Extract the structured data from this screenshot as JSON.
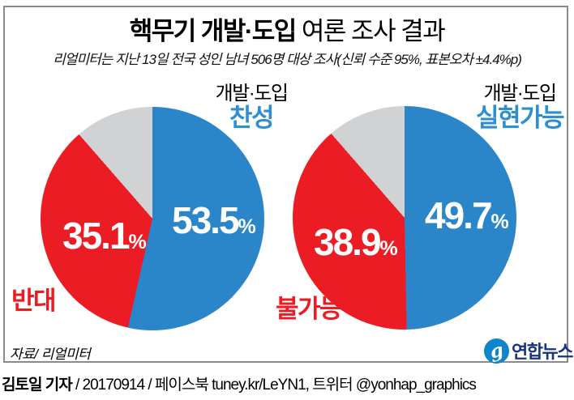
{
  "title": {
    "emphasis": "핵무기 개발·도입",
    "rest": " 여론 조사 결과"
  },
  "subtitle": "리얼미터는 지난 13일 전국 성인 남녀 506명 대상 조사(신뢰 수준 95%, 표본오차 ±4.4%p)",
  "percent_sign": "%",
  "source_note": "자료/ 리얼미터",
  "branding": {
    "logo_glyph": "g",
    "logo_text": "연합뉴스"
  },
  "footer": {
    "author": "김토일 기자",
    "meta": " / 20170914 / 페이스북 tuney.kr/LeYN1, 트위터 @yonhap_graphics"
  },
  "colors": {
    "slice_blue": "#2a86c8",
    "slice_red": "#ec1c24",
    "slice_gray": "#d0d2d3",
    "label_blue": "#2e8fd0",
    "label_red": "#ec1c24",
    "logo_blue": "#0e86c9",
    "logo_navy": "#17357c"
  },
  "chart_data": [
    {
      "type": "pie",
      "heading_small": "개발·도입",
      "heading_main": "찬성",
      "legend_position": "around-pie",
      "slices": [
        {
          "label": "찬성",
          "value": 53.5,
          "color": "#2a86c8"
        },
        {
          "label": "반대",
          "value": 35.1,
          "color": "#ec1c24"
        },
        {
          "label": "",
          "value": 11.4,
          "color": "#d0d2d3"
        }
      ]
    },
    {
      "type": "pie",
      "heading_small": "개발·도입",
      "heading_main": "실현가능",
      "legend_position": "around-pie",
      "slices": [
        {
          "label": "실현가능",
          "value": 49.7,
          "color": "#2a86c8"
        },
        {
          "label": "불가능",
          "value": 38.9,
          "color": "#ec1c24"
        },
        {
          "label": "",
          "value": 11.4,
          "color": "#d0d2d3"
        }
      ]
    }
  ]
}
